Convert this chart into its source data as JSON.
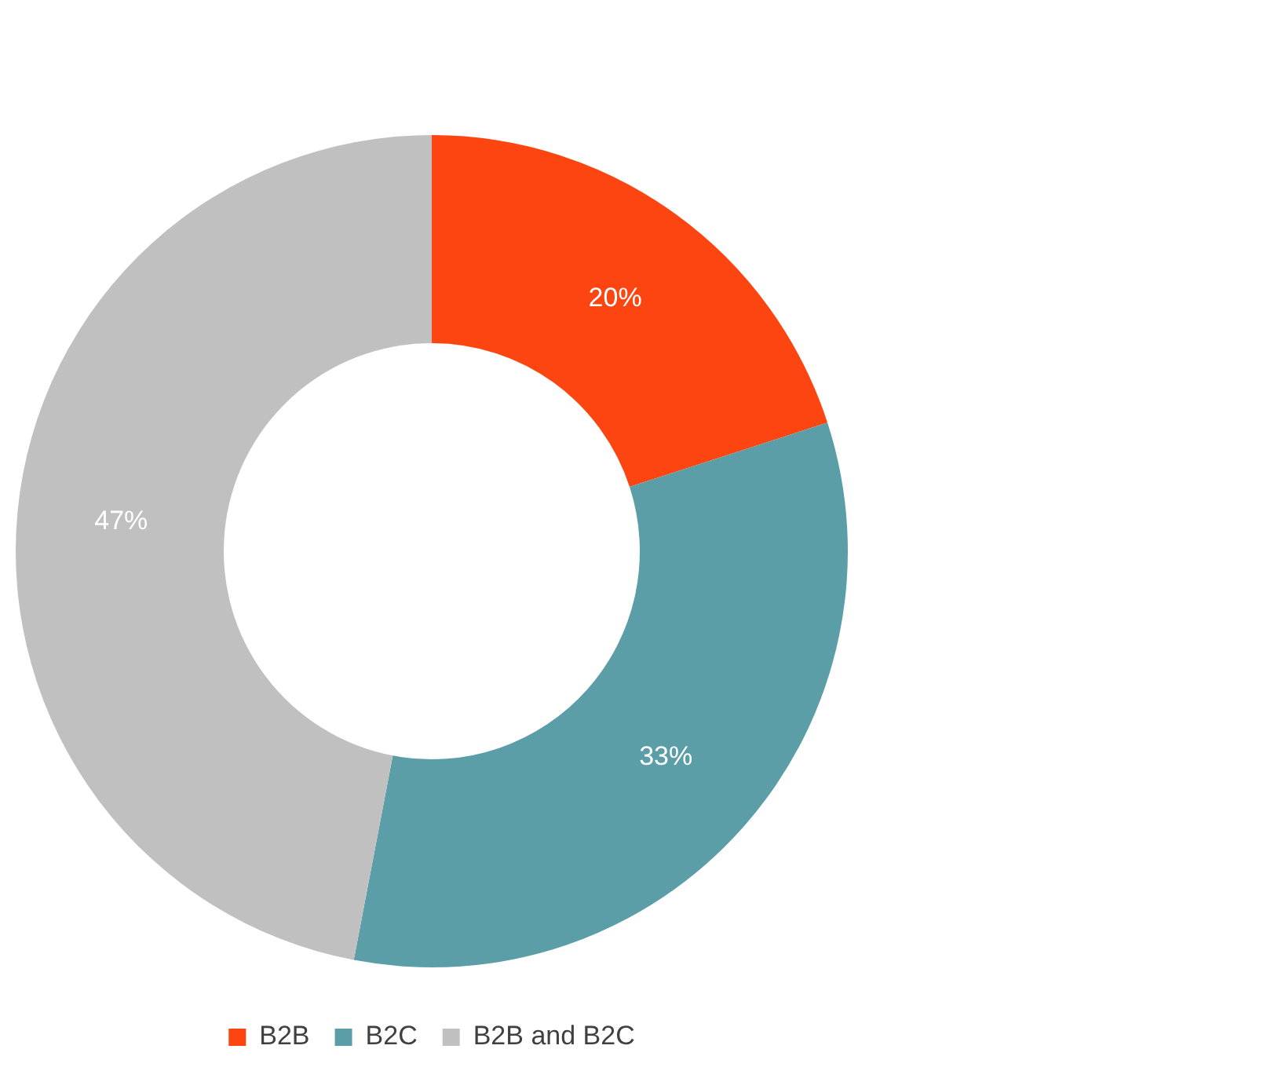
{
  "chart_data": {
    "type": "donut",
    "categories": [
      "B2B",
      "B2C",
      "B2B and B2C"
    ],
    "values": [
      20,
      33,
      47
    ],
    "colors": [
      "#fc4511",
      "#5b9ea8",
      "#c0c0c0"
    ],
    "value_labels": [
      "20%",
      "33%",
      "47%"
    ],
    "legend": "bottom"
  }
}
